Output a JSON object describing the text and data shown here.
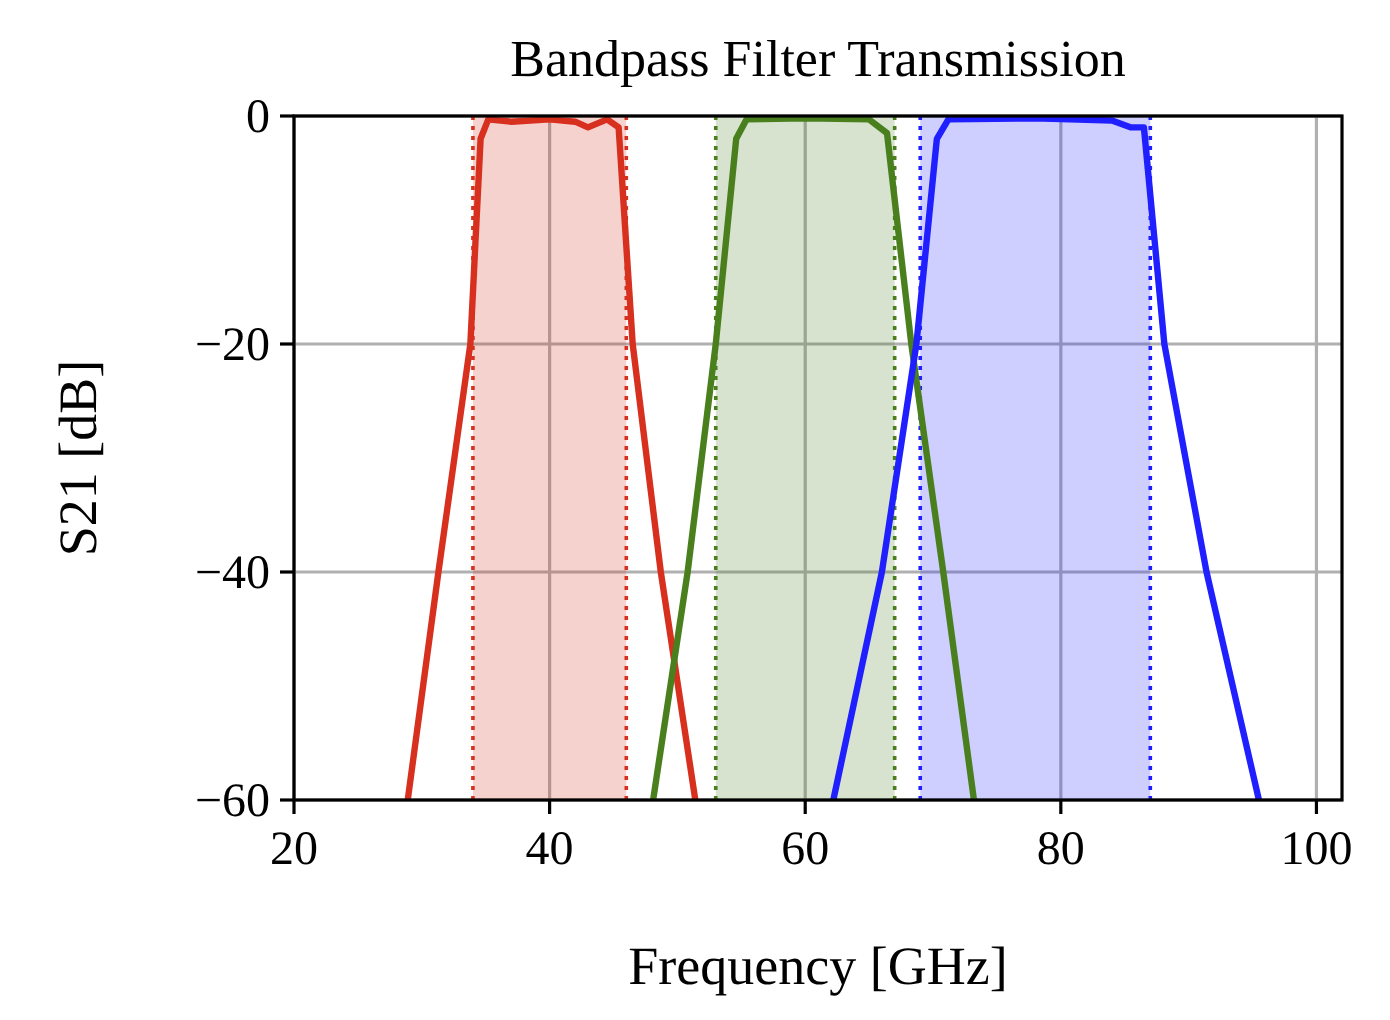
{
  "chart_data": {
    "type": "line",
    "title": "Bandpass Filter Transmission",
    "xlabel": "Frequency [GHz]",
    "ylabel": "S21 [dB]",
    "xlim": [
      20,
      102
    ],
    "xticks": [
      20,
      40,
      60,
      80,
      100
    ],
    "ylim": [
      -60,
      0
    ],
    "yticks": [
      {
        "value": 0,
        "label": "0"
      },
      {
        "value": -20,
        "label": "−20"
      },
      {
        "value": -40,
        "label": "−40"
      },
      {
        "value": -60,
        "label": "−60"
      }
    ],
    "grid": true,
    "line_style": "solid",
    "marker": "none",
    "series": [
      {
        "color": "#d7301f",
        "x": [
          28.9,
          31.3,
          33.8,
          34.6,
          35.2,
          37,
          40,
          42,
          43,
          44.5,
          45.4,
          46.5,
          48.7,
          51.4
        ],
        "values": [
          -60,
          -40,
          -20,
          -2,
          -0.3,
          -0.5,
          -0.3,
          -0.5,
          -1,
          -0.3,
          -1,
          -20,
          -40,
          -60
        ]
      },
      {
        "color": "#4a7f1e",
        "x": [
          48.1,
          50.8,
          53,
          54.6,
          55.4,
          60,
          65,
          66.4,
          68.3,
          70.8,
          73.2
        ],
        "values": [
          -60,
          -40,
          -20,
          -2,
          -0.3,
          -0.2,
          -0.3,
          -1.5,
          -20,
          -40,
          -60
        ]
      },
      {
        "color": "#1f1fff",
        "x": [
          62.2,
          66,
          68.7,
          70.3,
          71.2,
          78,
          84,
          85.5,
          86.5,
          88.1,
          91.4,
          95.5
        ],
        "values": [
          -60,
          -40,
          -20,
          -2,
          -0.3,
          -0.2,
          -0.4,
          -1,
          -1,
          -20,
          -40,
          -60
        ]
      }
    ],
    "bands": [
      {
        "axis": "x",
        "from": 34,
        "to": 46,
        "color": "#d7301f"
      },
      {
        "axis": "x",
        "from": 53,
        "to": 67,
        "color": "#4a7f1e"
      },
      {
        "axis": "x",
        "from": 69,
        "to": 87,
        "color": "#1f1fff"
      }
    ],
    "ref_lines": [
      {
        "axis": "x",
        "value": 34,
        "color": "#d7301f",
        "line_style": "dotted"
      },
      {
        "axis": "x",
        "value": 46,
        "color": "#d7301f",
        "line_style": "dotted"
      },
      {
        "axis": "x",
        "value": 53,
        "color": "#4a7f1e",
        "line_style": "dotted"
      },
      {
        "axis": "x",
        "value": 67,
        "color": "#4a7f1e",
        "line_style": "dotted"
      },
      {
        "axis": "x",
        "value": 69,
        "color": "#1f1fff",
        "line_style": "dotted"
      },
      {
        "axis": "x",
        "value": 87,
        "color": "#1f1fff",
        "line_style": "dotted"
      }
    ]
  }
}
